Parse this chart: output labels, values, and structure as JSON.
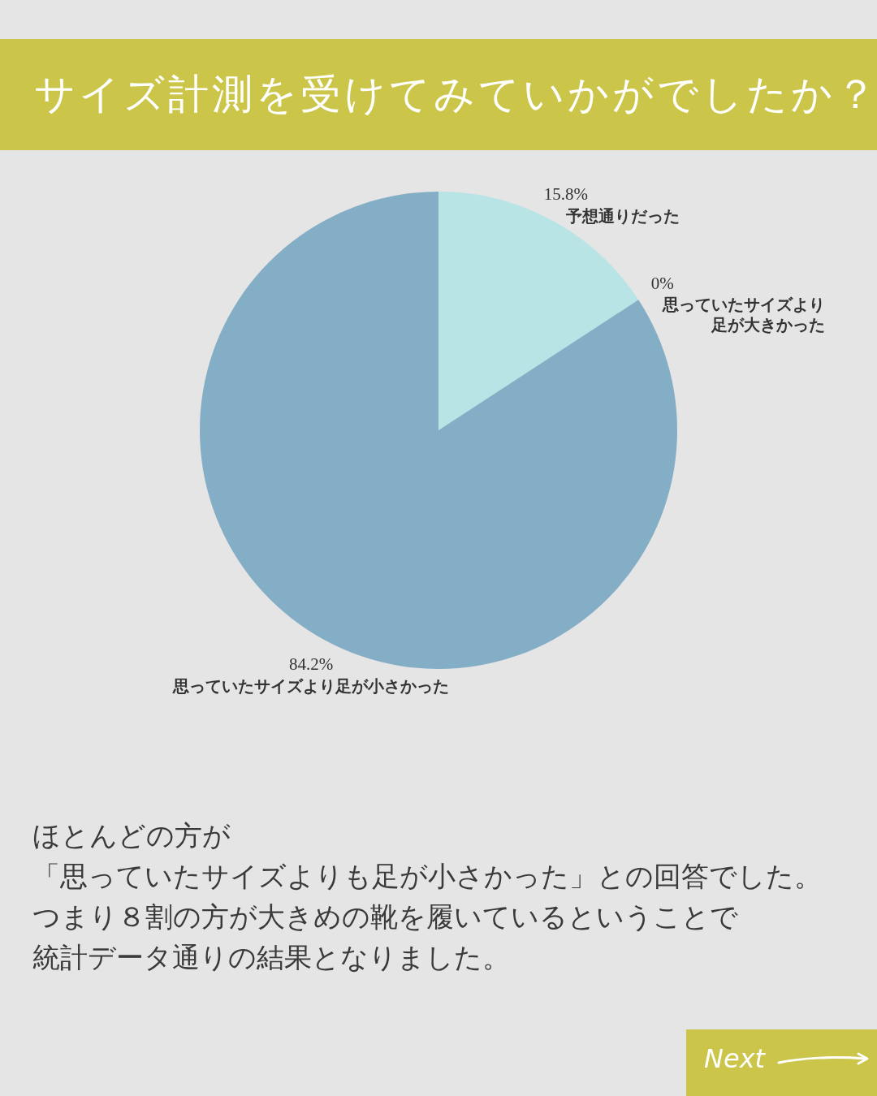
{
  "chart_data": {
    "type": "pie",
    "title": "サイズ計測を受けてみていかがでしたか？",
    "categories": [
      "予想通りだった",
      "思っていたサイズより足が大きかった",
      "思っていたサイズより足が小さかった"
    ],
    "values": [
      15.8,
      0,
      84.2
    ],
    "value_labels": [
      "15.8%",
      "0%",
      "84.2%"
    ],
    "colors": [
      "#b8e4e6",
      "#5f8fae",
      "#84aec6"
    ],
    "legend": false,
    "annotations": [
      "ほとんどの方が",
      "「思っていたサイズよりも足が小さかった」との回答でした。",
      "つまり８割の方が大きめの靴を履いているということで",
      "統計データ通りの結果となりました。",
      "Next"
    ]
  }
}
